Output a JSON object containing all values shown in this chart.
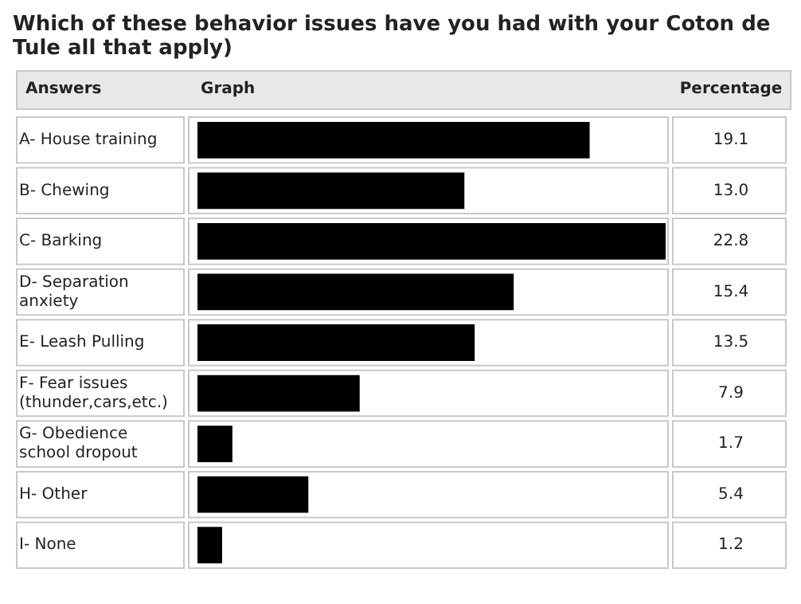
{
  "chart_data": {
    "type": "bar",
    "orientation": "horizontal",
    "title": "Which of these behavior issues have you had with your Coton de Tule all that apply)",
    "annotations": [
      "Answers",
      "Graph",
      "Percentage"
    ],
    "categories": [
      "A- House training",
      "B- Chewing",
      "C- Barking",
      "D- Separation anxiety",
      "E- Leash Pulling",
      "F- Fear issues (thunder,cars,etc.)",
      "G- Obedience school dropout",
      "H- Other",
      "I- None"
    ],
    "values": [
      19.1,
      13.0,
      22.8,
      15.4,
      13.5,
      7.9,
      1.7,
      5.4,
      1.2
    ],
    "value_labels": [
      "19.1",
      "13.0",
      "22.8",
      "15.4",
      "13.5",
      "7.9",
      "1.7",
      "5.4",
      "1.2"
    ],
    "color": "#000000"
  }
}
